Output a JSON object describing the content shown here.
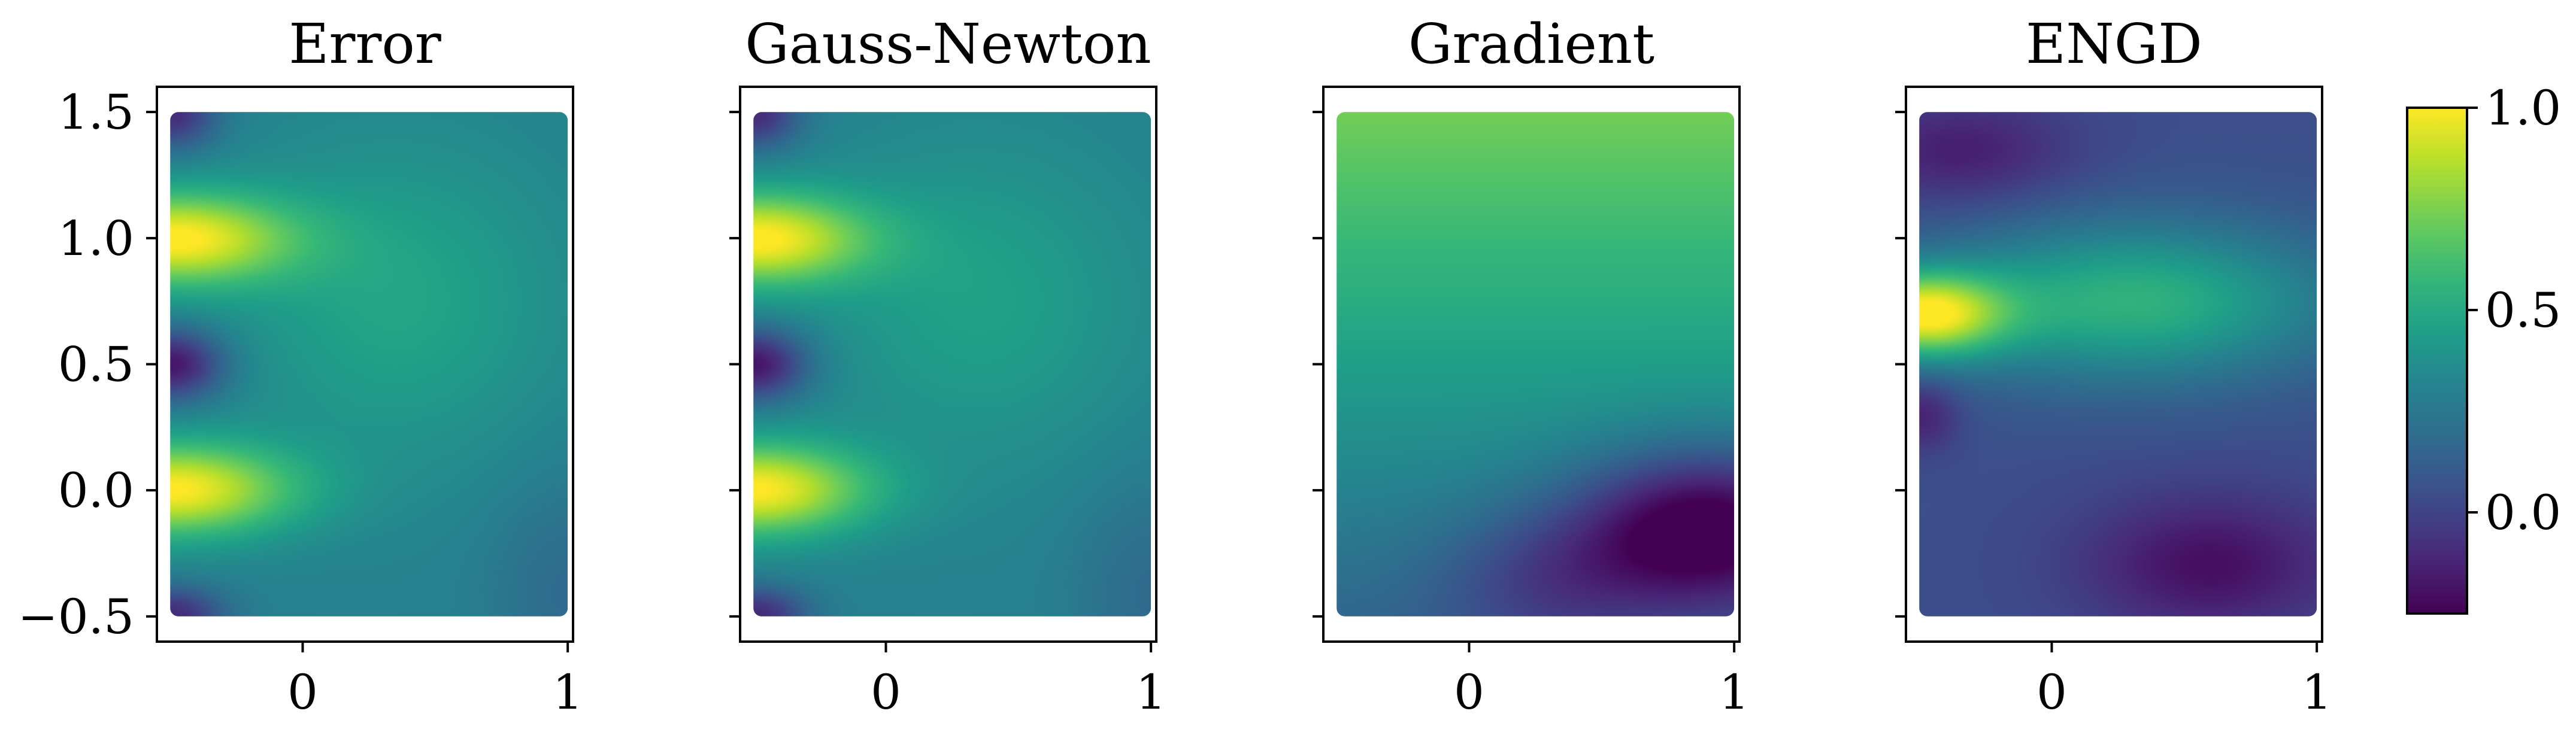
{
  "chart_data": {
    "type": "heatmap",
    "colormap": "viridis",
    "panels": [
      {
        "title": "Error",
        "xlim": [
          -0.55,
          1.02
        ],
        "ylim": [
          -0.6,
          1.6
        ],
        "x_ticks": [
          {
            "value": 0,
            "label": "0"
          },
          {
            "value": 1,
            "label": "1"
          }
        ],
        "y_ticks": [
          {
            "value": -0.5,
            "label": "−0.5"
          },
          {
            "value": 0.0,
            "label": "0.0"
          },
          {
            "value": 0.5,
            "label": "0.5"
          },
          {
            "value": 1.0,
            "label": "1.0"
          },
          {
            "value": 1.5,
            "label": "1.5"
          }
        ],
        "show_y_tick_labels": true,
        "field": "error"
      },
      {
        "title": "Gauss-Newton",
        "xlim": [
          -0.55,
          1.02
        ],
        "ylim": [
          -0.6,
          1.6
        ],
        "x_ticks": [
          {
            "value": 0,
            "label": "0"
          },
          {
            "value": 1,
            "label": "1"
          }
        ],
        "y_ticks": [
          {
            "value": -0.5,
            "label": ""
          },
          {
            "value": 0.0,
            "label": ""
          },
          {
            "value": 0.5,
            "label": ""
          },
          {
            "value": 1.0,
            "label": ""
          },
          {
            "value": 1.5,
            "label": ""
          }
        ],
        "show_y_tick_labels": false,
        "field": "gauss_newton"
      },
      {
        "title": "Gradient",
        "xlim": [
          -0.55,
          1.02
        ],
        "ylim": [
          -0.6,
          1.6
        ],
        "x_ticks": [
          {
            "value": 0,
            "label": "0"
          },
          {
            "value": 1,
            "label": "1"
          }
        ],
        "y_ticks": [
          {
            "value": -0.5,
            "label": ""
          },
          {
            "value": 0.0,
            "label": ""
          },
          {
            "value": 0.5,
            "label": ""
          },
          {
            "value": 1.0,
            "label": ""
          },
          {
            "value": 1.5,
            "label": ""
          }
        ],
        "show_y_tick_labels": false,
        "field": "gradient"
      },
      {
        "title": "ENGD",
        "xlim": [
          -0.55,
          1.02
        ],
        "ylim": [
          -0.6,
          1.6
        ],
        "x_ticks": [
          {
            "value": 0,
            "label": "0"
          },
          {
            "value": 1,
            "label": "1"
          }
        ],
        "y_ticks": [
          {
            "value": -0.5,
            "label": ""
          },
          {
            "value": 0.0,
            "label": ""
          },
          {
            "value": 0.5,
            "label": ""
          },
          {
            "value": 1.0,
            "label": ""
          },
          {
            "value": 1.5,
            "label": ""
          }
        ],
        "show_y_tick_labels": false,
        "field": "engd"
      }
    ],
    "data_domain": {
      "x": [
        -0.5,
        1.0
      ],
      "y": [
        -0.5,
        1.5
      ]
    },
    "colorbar": {
      "range": [
        -0.25,
        1.0
      ],
      "ticks": [
        {
          "value": 0.0,
          "label": "0.0"
        },
        {
          "value": 0.5,
          "label": "0.5"
        },
        {
          "value": 1.0,
          "label": "1.0"
        }
      ]
    },
    "fields": {
      "error": {
        "base": 0.3,
        "sources": [
          {
            "x": -0.5,
            "y": 1.0,
            "amp": 0.7,
            "sx": 0.32,
            "sy": 0.13
          },
          {
            "x": -0.5,
            "y": 0.0,
            "amp": 0.7,
            "sx": 0.32,
            "sy": 0.13
          },
          {
            "x": -0.5,
            "y": 0.5,
            "amp": -0.5,
            "sx": 0.14,
            "sy": 0.1
          },
          {
            "x": -0.5,
            "y": 1.5,
            "amp": -0.4,
            "sx": 0.12,
            "sy": 0.1
          },
          {
            "x": -0.5,
            "y": -0.5,
            "amp": -0.4,
            "sx": 0.14,
            "sy": 0.08
          },
          {
            "x": 0.35,
            "y": 0.75,
            "amp": 0.18,
            "sx": 0.45,
            "sy": 0.45
          },
          {
            "x": 1.0,
            "y": -0.4,
            "amp": -0.12,
            "sx": 0.2,
            "sy": 0.3
          }
        ]
      },
      "gauss_newton": {
        "base": 0.3,
        "sources": [
          {
            "x": -0.5,
            "y": 1.0,
            "amp": 0.7,
            "sx": 0.3,
            "sy": 0.13
          },
          {
            "x": -0.5,
            "y": 0.0,
            "amp": 0.7,
            "sx": 0.3,
            "sy": 0.13
          },
          {
            "x": -0.5,
            "y": 0.5,
            "amp": -0.5,
            "sx": 0.14,
            "sy": 0.1
          },
          {
            "x": -0.5,
            "y": 1.5,
            "amp": -0.4,
            "sx": 0.12,
            "sy": 0.1
          },
          {
            "x": -0.5,
            "y": -0.5,
            "amp": -0.4,
            "sx": 0.14,
            "sy": 0.08
          },
          {
            "x": 0.35,
            "y": 0.75,
            "amp": 0.16,
            "sx": 0.45,
            "sy": 0.45
          },
          {
            "x": 1.0,
            "y": -0.4,
            "amp": -0.12,
            "sx": 0.2,
            "sy": 0.3
          }
        ]
      },
      "gradient": {
        "base": 0.45,
        "gradient_y": 0.28,
        "sources": [
          {
            "x": 0.9,
            "y": -0.15,
            "amp": -0.6,
            "sx": 0.35,
            "sy": 0.22
          },
          {
            "x": 0.3,
            "y": -0.35,
            "amp": -0.2,
            "sx": 0.3,
            "sy": 0.2
          }
        ]
      },
      "engd": {
        "base": 0.05,
        "sources": [
          {
            "x": -0.5,
            "y": 0.7,
            "amp": 0.85,
            "sx": 0.22,
            "sy": 0.12
          },
          {
            "x": 0.3,
            "y": 0.75,
            "amp": 0.5,
            "sx": 0.55,
            "sy": 0.22
          },
          {
            "x": 0.6,
            "y": -0.3,
            "amp": -0.25,
            "sx": 0.35,
            "sy": 0.2
          },
          {
            "x": -0.35,
            "y": 1.35,
            "amp": -0.2,
            "sx": 0.3,
            "sy": 0.15
          },
          {
            "x": -0.5,
            "y": 0.3,
            "amp": -0.2,
            "sx": 0.1,
            "sy": 0.1
          }
        ]
      }
    }
  }
}
